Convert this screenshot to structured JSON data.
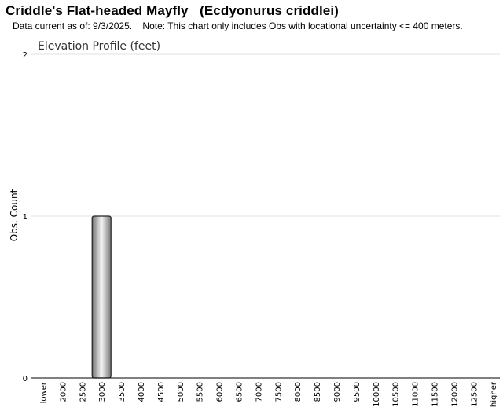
{
  "page": {
    "title": "Criddle's Flat-headed Mayfly   (Ecdyonurus criddlei)",
    "subtitle": "Data current as of: 9/3/2025.    Note: This chart only includes Obs with locational uncertainty <= 400 meters."
  },
  "chart_data": {
    "type": "bar",
    "title": "Elevation Profile (feet)",
    "ylabel": "Obs. Count",
    "xlabel": "",
    "ylim": [
      0,
      2
    ],
    "yticks": [
      0,
      1,
      2
    ],
    "grid": true,
    "categories": [
      "lower",
      "2000",
      "2500",
      "3000",
      "3500",
      "4000",
      "4500",
      "5000",
      "5500",
      "6000",
      "6500",
      "7000",
      "7500",
      "8000",
      "8500",
      "9000",
      "9500",
      "10000",
      "10500",
      "11000",
      "11500",
      "12000",
      "12500",
      "higher"
    ],
    "values": [
      0,
      0,
      0,
      1,
      0,
      0,
      0,
      0,
      0,
      0,
      0,
      0,
      0,
      0,
      0,
      0,
      0,
      0,
      0,
      0,
      0,
      0,
      0,
      0
    ],
    "bar_color": "#b0b0b0"
  }
}
